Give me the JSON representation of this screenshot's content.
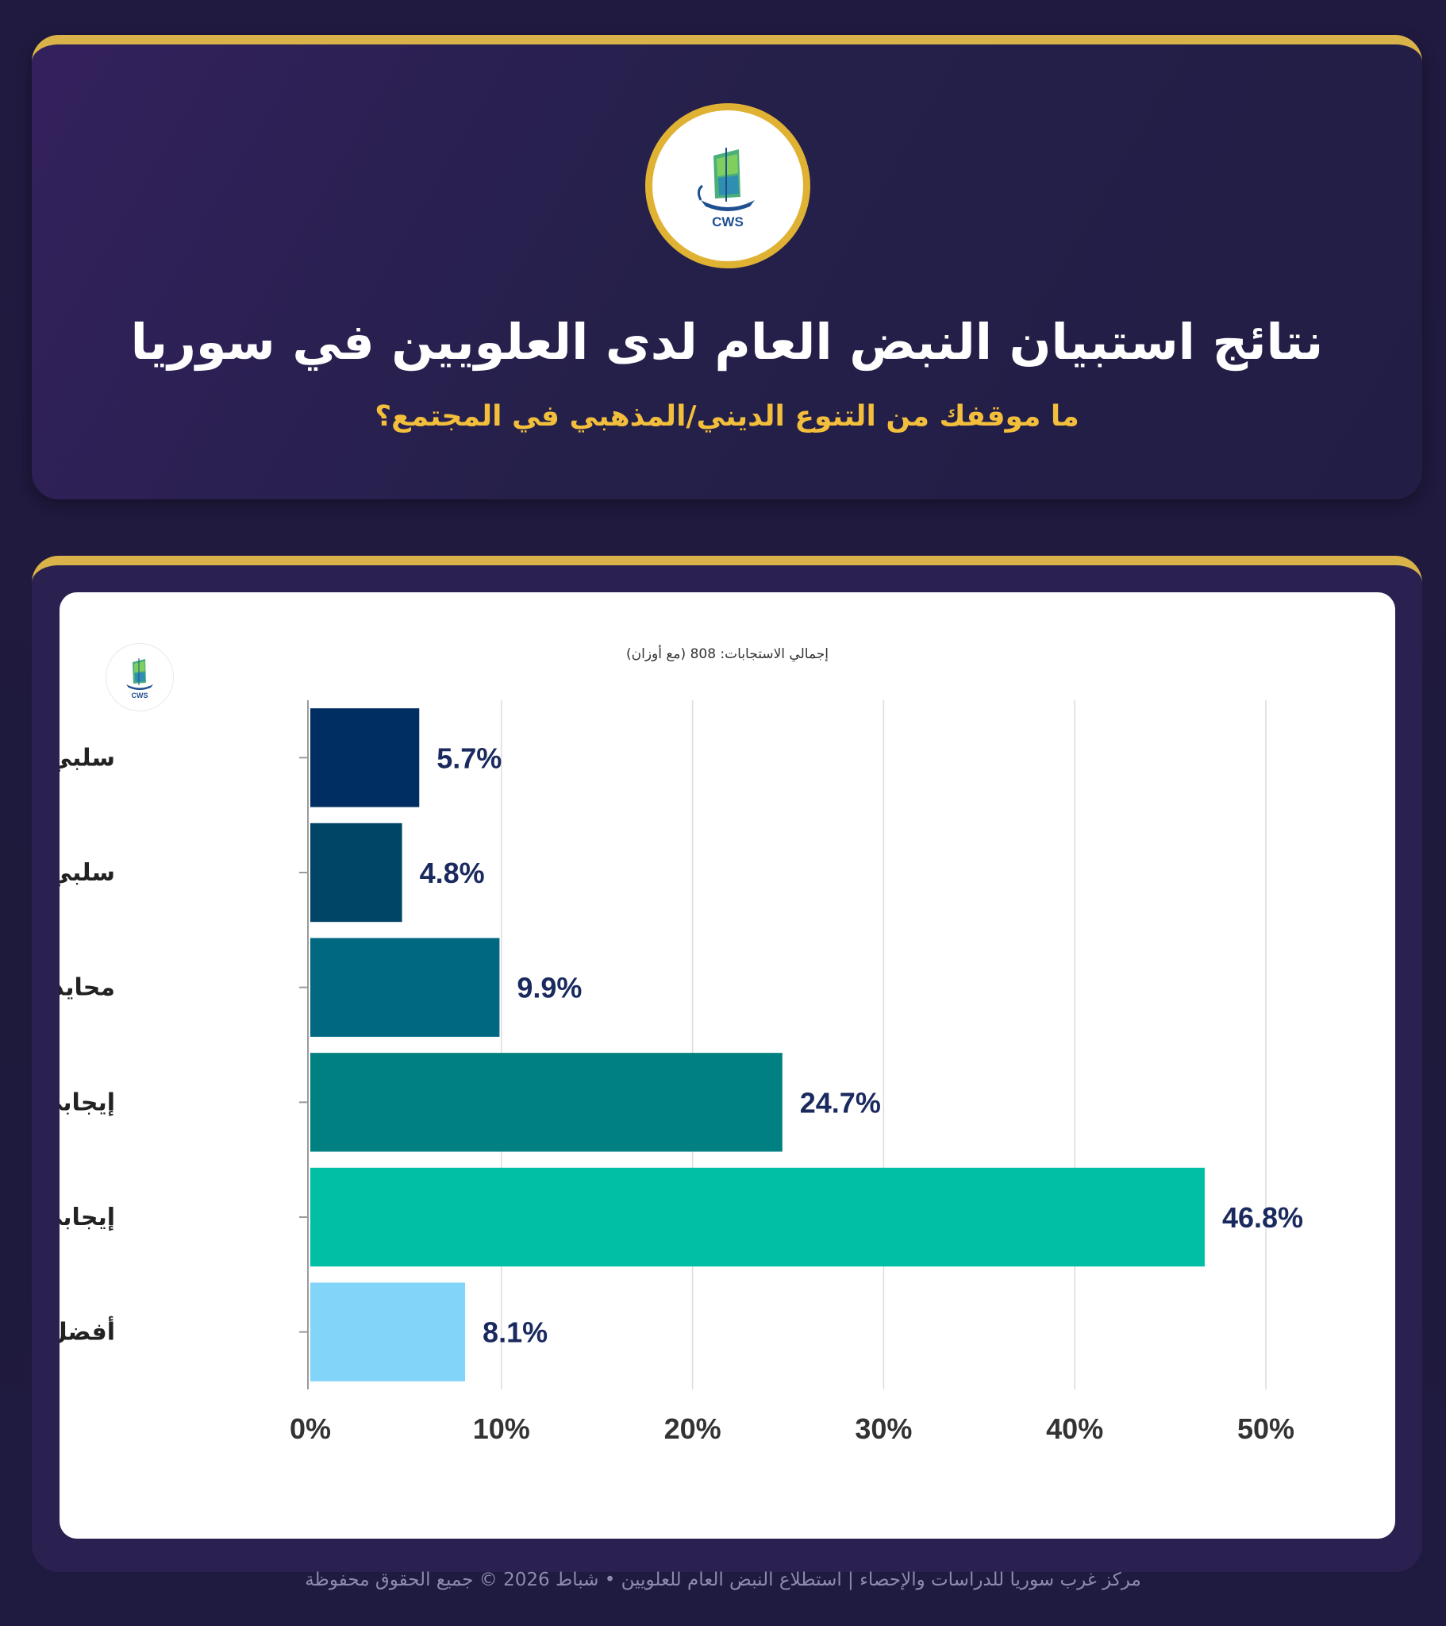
{
  "header": {
    "logo_text": "CWS",
    "title": "نتائج استبيان النبض العام لدى العلويين في سوريا",
    "subtitle": "ما موقفك من التنوع الديني/المذهبي في المجتمع؟"
  },
  "chart_panel": {
    "total_label": "إجمالي الاستجابات: 808 (مع أوزان)",
    "mini_logo_text": "CWS"
  },
  "footer": {
    "text": "مركز غرب سوريا للدراسات والإحصاء | استطلاع النبض العام للعلويين • شباط 2026 © جميع الحقوق محفوظة"
  },
  "colors": {
    "background": "#201a40",
    "accent_gold": "#d9b24a",
    "value_label": "#1a2a5e"
  },
  "chart_data": {
    "type": "bar",
    "orientation": "horizontal",
    "categories": [
      "سلبي جداً",
      "سلبي إلى حد ما",
      "محايد",
      "إيجابي إلى حد ما",
      "إيجابي جداً",
      "أفضل عدم الإجابة"
    ],
    "values": [
      5.7,
      4.8,
      9.9,
      24.7,
      46.8,
      8.1
    ],
    "value_labels": [
      "5.7%",
      "4.8%",
      "9.9%",
      "24.7%",
      "46.8%",
      "8.1%"
    ],
    "bar_colors": [
      "#002d62",
      "#004466",
      "#006880",
      "#008080",
      "#00bfa5",
      "#82d4f8"
    ],
    "x_ticks": [
      0,
      10,
      20,
      30,
      40,
      50
    ],
    "x_tick_labels": [
      "0%",
      "10%",
      "20%",
      "30%",
      "40%",
      "50%"
    ],
    "xlim": [
      0,
      50
    ],
    "grid": true,
    "title": "",
    "xlabel": "",
    "ylabel": ""
  }
}
